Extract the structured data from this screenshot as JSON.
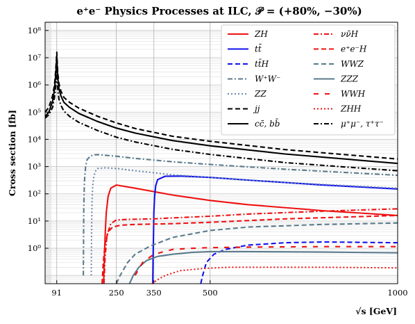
{
  "chart_data": {
    "type": "line",
    "title": "e⁺e⁻ Physics Processes at ILC, 𝒫 = (+80%, −30%)",
    "xlabel": "√s [GeV]",
    "ylabel": "Cross section [fb]",
    "xlim": [
      60,
      1000
    ],
    "ylim": [
      0.05,
      200000000
    ],
    "yscale": "log",
    "xticks": [
      91,
      250,
      350,
      500,
      1000
    ],
    "xtick_labels": [
      "91",
      "250",
      "350",
      "500",
      "1000"
    ],
    "yticks": [
      1,
      10,
      100,
      1000,
      10000,
      100000,
      1000000,
      10000000,
      100000000
    ],
    "ytick_labels": [
      "10⁰",
      "10¹",
      "10²",
      "10³",
      "10⁴",
      "10⁵",
      "10⁶",
      "10⁷",
      "10⁸"
    ],
    "grid": true,
    "legend_position": "top-right",
    "series": [
      {
        "name": "ZH",
        "color": "#ee1111",
        "dash": "solid",
        "x": [
          216,
          218,
          220,
          223,
          228,
          235,
          250,
          300,
          400,
          500,
          600,
          800,
          1000
        ],
        "y": [
          0.05,
          0.5,
          3,
          20,
          80,
          160,
          210,
          160,
          90,
          57,
          40,
          24,
          16
        ]
      },
      {
        "name": "tt̄",
        "color": "#1111ee",
        "dash": "solid",
        "x": [
          347,
          348,
          349,
          350,
          352,
          355,
          360,
          380,
          420,
          500,
          600,
          800,
          1000
        ],
        "y": [
          0.05,
          0.5,
          3,
          20,
          80,
          200,
          330,
          440,
          450,
          400,
          320,
          210,
          150
        ]
      },
      {
        "name": "tt̄H",
        "color": "#1111ee",
        "dash": "dashed",
        "x": [
          475,
          480,
          490,
          510,
          540,
          600,
          700,
          800,
          1000
        ],
        "y": [
          0.05,
          0.1,
          0.3,
          0.6,
          0.9,
          1.3,
          1.6,
          1.7,
          1.6
        ]
      },
      {
        "name": "W⁺W⁻",
        "color": "#5a7a8c",
        "dash": "dashdot",
        "x": [
          162,
          163,
          165,
          168,
          172,
          180,
          190,
          200,
          250,
          300,
          400,
          500,
          700,
          1000
        ],
        "y": [
          0.1,
          30,
          300,
          1000,
          1800,
          2400,
          2700,
          2750,
          2400,
          2000,
          1500,
          1200,
          800,
          480
        ]
      },
      {
        "name": "ZZ",
        "color": "#6a86b0",
        "dash": "dotted",
        "x": [
          183,
          184,
          185,
          187,
          190,
          195,
          200,
          220,
          250,
          300,
          400,
          500,
          700,
          1000
        ],
        "y": [
          0.1,
          5,
          50,
          200,
          450,
          700,
          850,
          900,
          850,
          700,
          500,
          400,
          260,
          160
        ]
      },
      {
        "name": "jj",
        "color": "#000000",
        "dash": "dashed",
        "x": [
          60,
          70,
          80,
          85,
          88,
          90,
          91,
          92,
          94,
          97,
          102,
          110,
          125,
          150,
          200,
          250,
          300,
          400,
          500,
          700,
          1000
        ],
        "y": [
          100000,
          150000,
          400000,
          1000000,
          3000000,
          8000000,
          16000000,
          8000000,
          2500000,
          1100000,
          600000,
          350000,
          230000,
          140000,
          70000,
          40000,
          25000,
          13000,
          8500,
          4200,
          1900
        ]
      },
      {
        "name": "cc̄, bb̄",
        "color": "#000000",
        "dash": "solid",
        "x": [
          60,
          70,
          80,
          85,
          88,
          90,
          91,
          92,
          94,
          97,
          102,
          110,
          125,
          150,
          200,
          250,
          300,
          400,
          500,
          700,
          1000
        ],
        "y": [
          70000,
          100000,
          250000,
          700000,
          2000000,
          5500000,
          11000000,
          5500000,
          1700000,
          700000,
          400000,
          230000,
          150000,
          90000,
          45000,
          26000,
          17000,
          9000,
          5800,
          2900,
          1300
        ]
      },
      {
        "name": "νν̄H",
        "color": "#ee1111",
        "dash": "dashdot",
        "x": [
          217,
          220,
          225,
          235,
          250,
          280,
          350,
          400,
          500,
          600,
          800,
          1000
        ],
        "y": [
          0.05,
          0.5,
          3,
          8,
          11,
          11.5,
          12,
          13,
          15,
          18,
          23,
          28
        ]
      },
      {
        "name": "e⁺e⁻H",
        "color": "#ee1111",
        "dash": "dashed",
        "x": [
          212,
          215,
          220,
          228,
          240,
          260,
          300,
          400,
          500,
          700,
          1000
        ],
        "y": [
          0.05,
          0.3,
          1.5,
          4,
          6,
          7,
          7.5,
          8,
          9,
          12,
          16
        ]
      },
      {
        "name": "WWZ",
        "color": "#5a7a8c",
        "dash": "dashed",
        "x": [
          250,
          260,
          280,
          300,
          340,
          400,
          500,
          600,
          800,
          1000
        ],
        "y": [
          0.05,
          0.1,
          0.3,
          0.6,
          1.2,
          2.5,
          4.5,
          6,
          7.5,
          8.5
        ]
      },
      {
        "name": "ZZZ",
        "color": "#5a7a8c",
        "dash": "solid",
        "x": [
          285,
          295,
          310,
          330,
          360,
          400,
          450,
          500,
          600,
          800,
          1000
        ],
        "y": [
          0.05,
          0.1,
          0.2,
          0.35,
          0.5,
          0.6,
          0.7,
          0.75,
          0.75,
          0.72,
          0.68
        ]
      },
      {
        "name": "WWH",
        "color": "#ee1111",
        "dash": "loosedash",
        "x": [
          300,
          320,
          350,
          400,
          450,
          500,
          600,
          800,
          1000
        ],
        "y": [
          0.1,
          0.3,
          0.6,
          0.9,
          1.0,
          1.05,
          1.1,
          1.15,
          1.15
        ]
      },
      {
        "name": "ZHH",
        "color": "#ee1111",
        "dash": "finedot",
        "x": [
          345,
          360,
          380,
          420,
          480,
          550,
          650,
          800,
          1000
        ],
        "y": [
          0.05,
          0.07,
          0.1,
          0.15,
          0.18,
          0.2,
          0.2,
          0.2,
          0.19
        ]
      },
      {
        "name": "μ⁺μ⁻, τ⁺τ⁻",
        "color": "#000000",
        "dash": "dashdot",
        "x": [
          60,
          70,
          80,
          85,
          88,
          90,
          91,
          92,
          94,
          97,
          102,
          110,
          125,
          150,
          200,
          250,
          300,
          400,
          500,
          700,
          1000
        ],
        "y": [
          60000,
          80000,
          150000,
          350000,
          800000,
          1800000,
          3000000,
          1800000,
          600000,
          300000,
          180000,
          110000,
          70000,
          42000,
          21000,
          12000,
          8000,
          4300,
          2800,
          1400,
          700
        ]
      }
    ]
  }
}
